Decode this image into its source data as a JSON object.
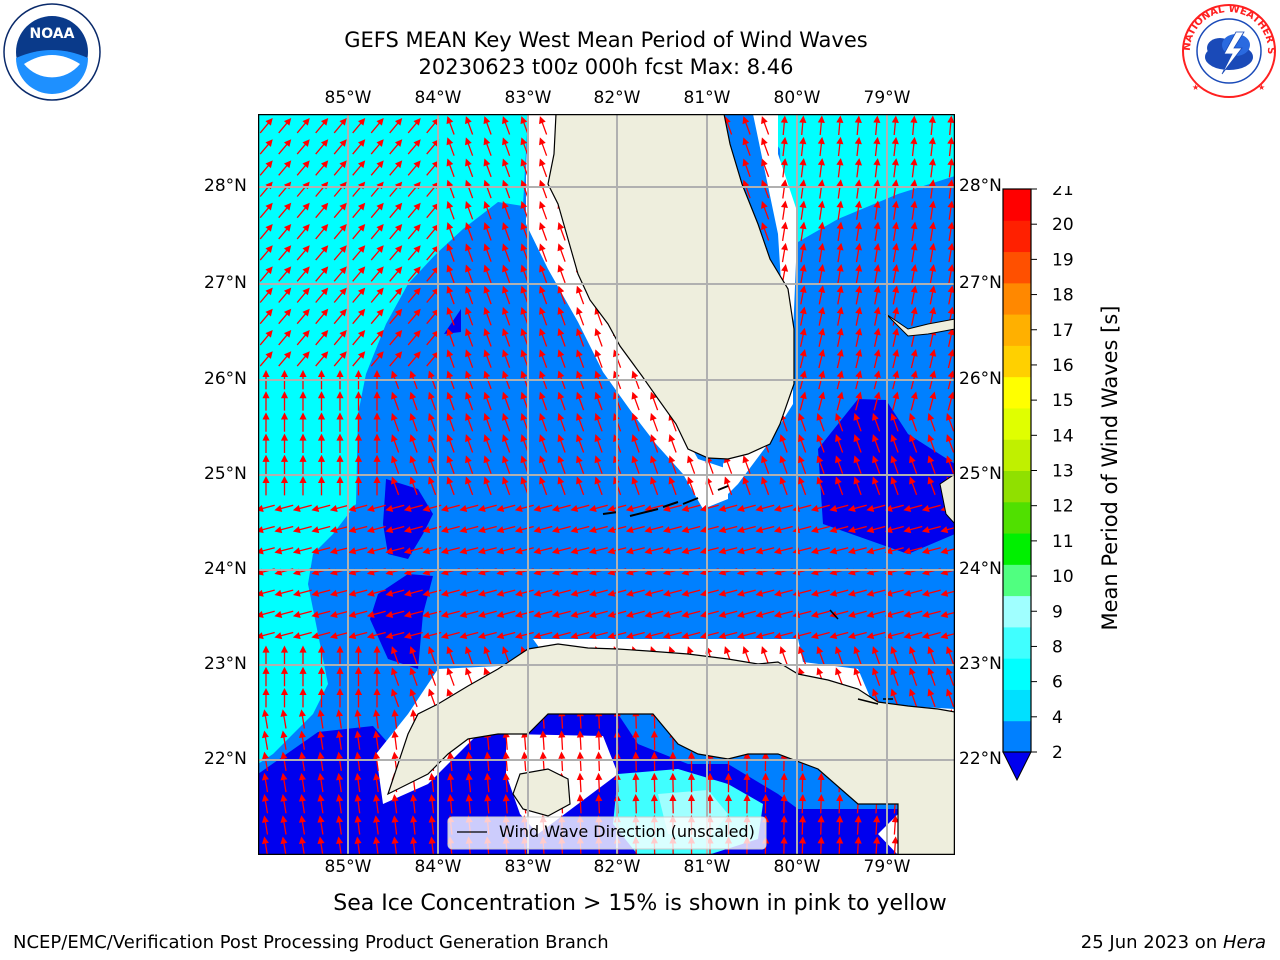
{
  "header": {
    "title_line1": "GEFS MEAN Key West Mean Period of Wind Waves",
    "title_line2": "20230623 t00z 000h fcst   Max: 8.46"
  },
  "logos": {
    "noaa_text": "NOAA",
    "nws_text": "NATIONAL WEATHER SERVICE"
  },
  "map": {
    "lon_labels": [
      "85°W",
      "84°W",
      "83°W",
      "82°W",
      "81°W",
      "80°W",
      "79°W"
    ],
    "lat_labels": [
      "28°N",
      "27°N",
      "26°N",
      "25°N",
      "24°N",
      "23°N",
      "22°N"
    ],
    "legend_label": "Wind Wave Direction (unscaled)",
    "colors": {
      "land": "#eeeedd",
      "coast": "#000000",
      "grid": "#b0b0b0",
      "arrow": "#ff0000",
      "cyan": "#00ffff",
      "light_cyan": "#30ffff",
      "mid_blue": "#0080ff",
      "dark_blue": "#0000ee",
      "mask": "#ffffff"
    }
  },
  "colorbar": {
    "label": "Mean Period of Wind Waves [s]",
    "ticks": [
      "2",
      "4",
      "6",
      "8",
      "9",
      "10",
      "11",
      "12",
      "13",
      "14",
      "15",
      "16",
      "17",
      "18",
      "19",
      "20",
      "21"
    ],
    "bands": [
      "#0080ff",
      "#00e0ff",
      "#00ffff",
      "#40ffff",
      "#a0ffff",
      "#50ff80",
      "#00f000",
      "#50e000",
      "#90e000",
      "#c0f000",
      "#e0ff00",
      "#ffff00",
      "#ffd000",
      "#ffb000",
      "#ff8800",
      "#ff5000",
      "#ff2000",
      "#ff0000"
    ]
  },
  "footer": {
    "caption": "Sea Ice Concentration > 15% is shown in pink to yellow",
    "left": "NCEP/EMC/Verification Post Processing Product Generation Branch",
    "right_date": "25 Jun 2023 on ",
    "right_host": "Hera"
  }
}
